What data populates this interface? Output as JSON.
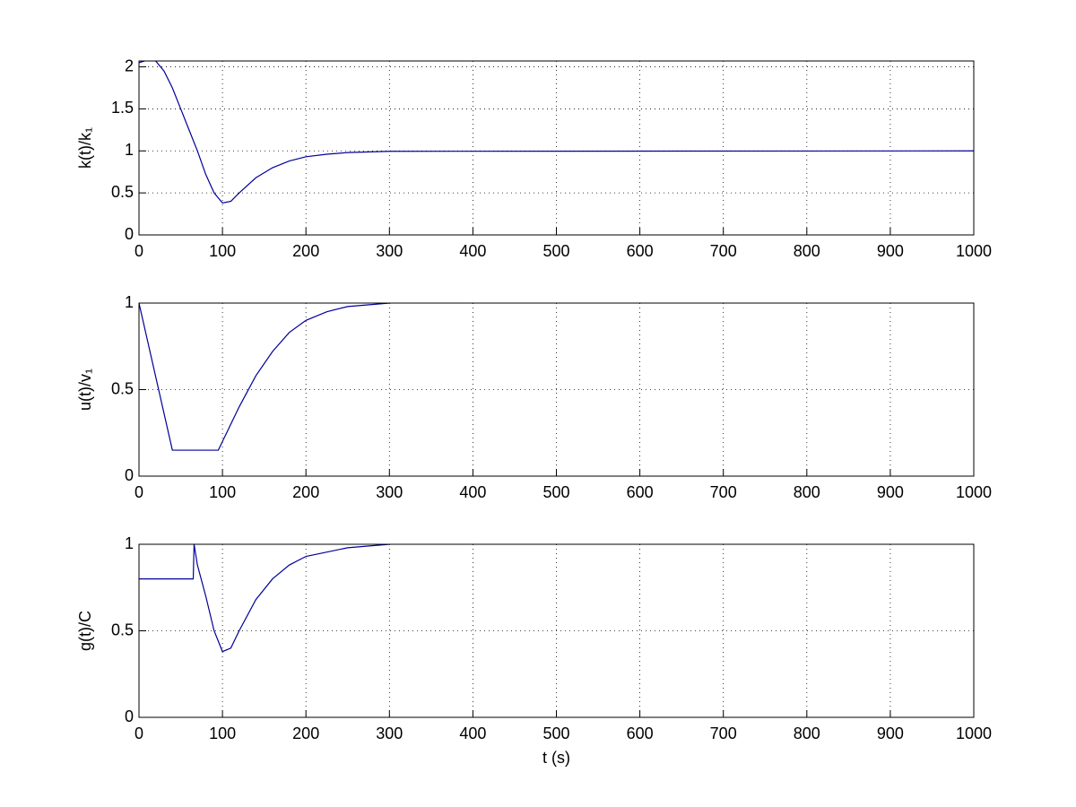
{
  "chart_data": [
    {
      "type": "line",
      "ylabel": "k(t)/k₁",
      "xlim": [
        0,
        1000
      ],
      "xticks": [
        0,
        100,
        200,
        300,
        400,
        500,
        600,
        700,
        800,
        900,
        1000
      ],
      "ylim": [
        0,
        2.07
      ],
      "yticks": [
        0,
        0.5,
        1,
        1.5,
        2
      ],
      "grid": true,
      "x": [
        0,
        10,
        20,
        30,
        40,
        50,
        60,
        70,
        80,
        90,
        100,
        110,
        120,
        140,
        160,
        180,
        200,
        225,
        250,
        300,
        1000
      ],
      "series": [
        {
          "color": "#000099",
          "values": [
            2.05,
            2.08,
            2.07,
            1.95,
            1.75,
            1.5,
            1.25,
            1.0,
            0.72,
            0.5,
            0.38,
            0.4,
            0.5,
            0.68,
            0.8,
            0.88,
            0.93,
            0.96,
            0.98,
            0.995,
            1.0
          ]
        }
      ]
    },
    {
      "type": "line",
      "ylabel": "u(t)/v₁",
      "xlim": [
        0,
        1000
      ],
      "xticks": [
        0,
        100,
        200,
        300,
        400,
        500,
        600,
        700,
        800,
        900,
        1000
      ],
      "ylim": [
        0,
        1
      ],
      "yticks": [
        0,
        0.5,
        1
      ],
      "grid": true,
      "x": [
        0,
        40,
        95,
        100,
        120,
        140,
        160,
        180,
        200,
        225,
        250,
        300
      ],
      "series": [
        {
          "color": "#000099",
          "values": [
            1.0,
            0.15,
            0.15,
            0.2,
            0.4,
            0.58,
            0.72,
            0.83,
            0.9,
            0.95,
            0.98,
            1.0
          ]
        }
      ]
    },
    {
      "type": "line",
      "ylabel": "g(t)/C",
      "xlabel": "t (s)",
      "xlim": [
        0,
        1000
      ],
      "xticks": [
        0,
        100,
        200,
        300,
        400,
        500,
        600,
        700,
        800,
        900,
        1000
      ],
      "ylim": [
        0,
        1
      ],
      "yticks": [
        0,
        0.5,
        1
      ],
      "grid": true,
      "x": [
        0,
        65,
        66,
        70,
        80,
        90,
        100,
        110,
        120,
        140,
        160,
        180,
        200,
        250,
        300
      ],
      "series": [
        {
          "color": "#000099",
          "values": [
            0.8,
            0.8,
            1.0,
            0.88,
            0.7,
            0.5,
            0.38,
            0.4,
            0.5,
            0.68,
            0.8,
            0.88,
            0.93,
            0.98,
            1.0
          ]
        }
      ]
    }
  ]
}
